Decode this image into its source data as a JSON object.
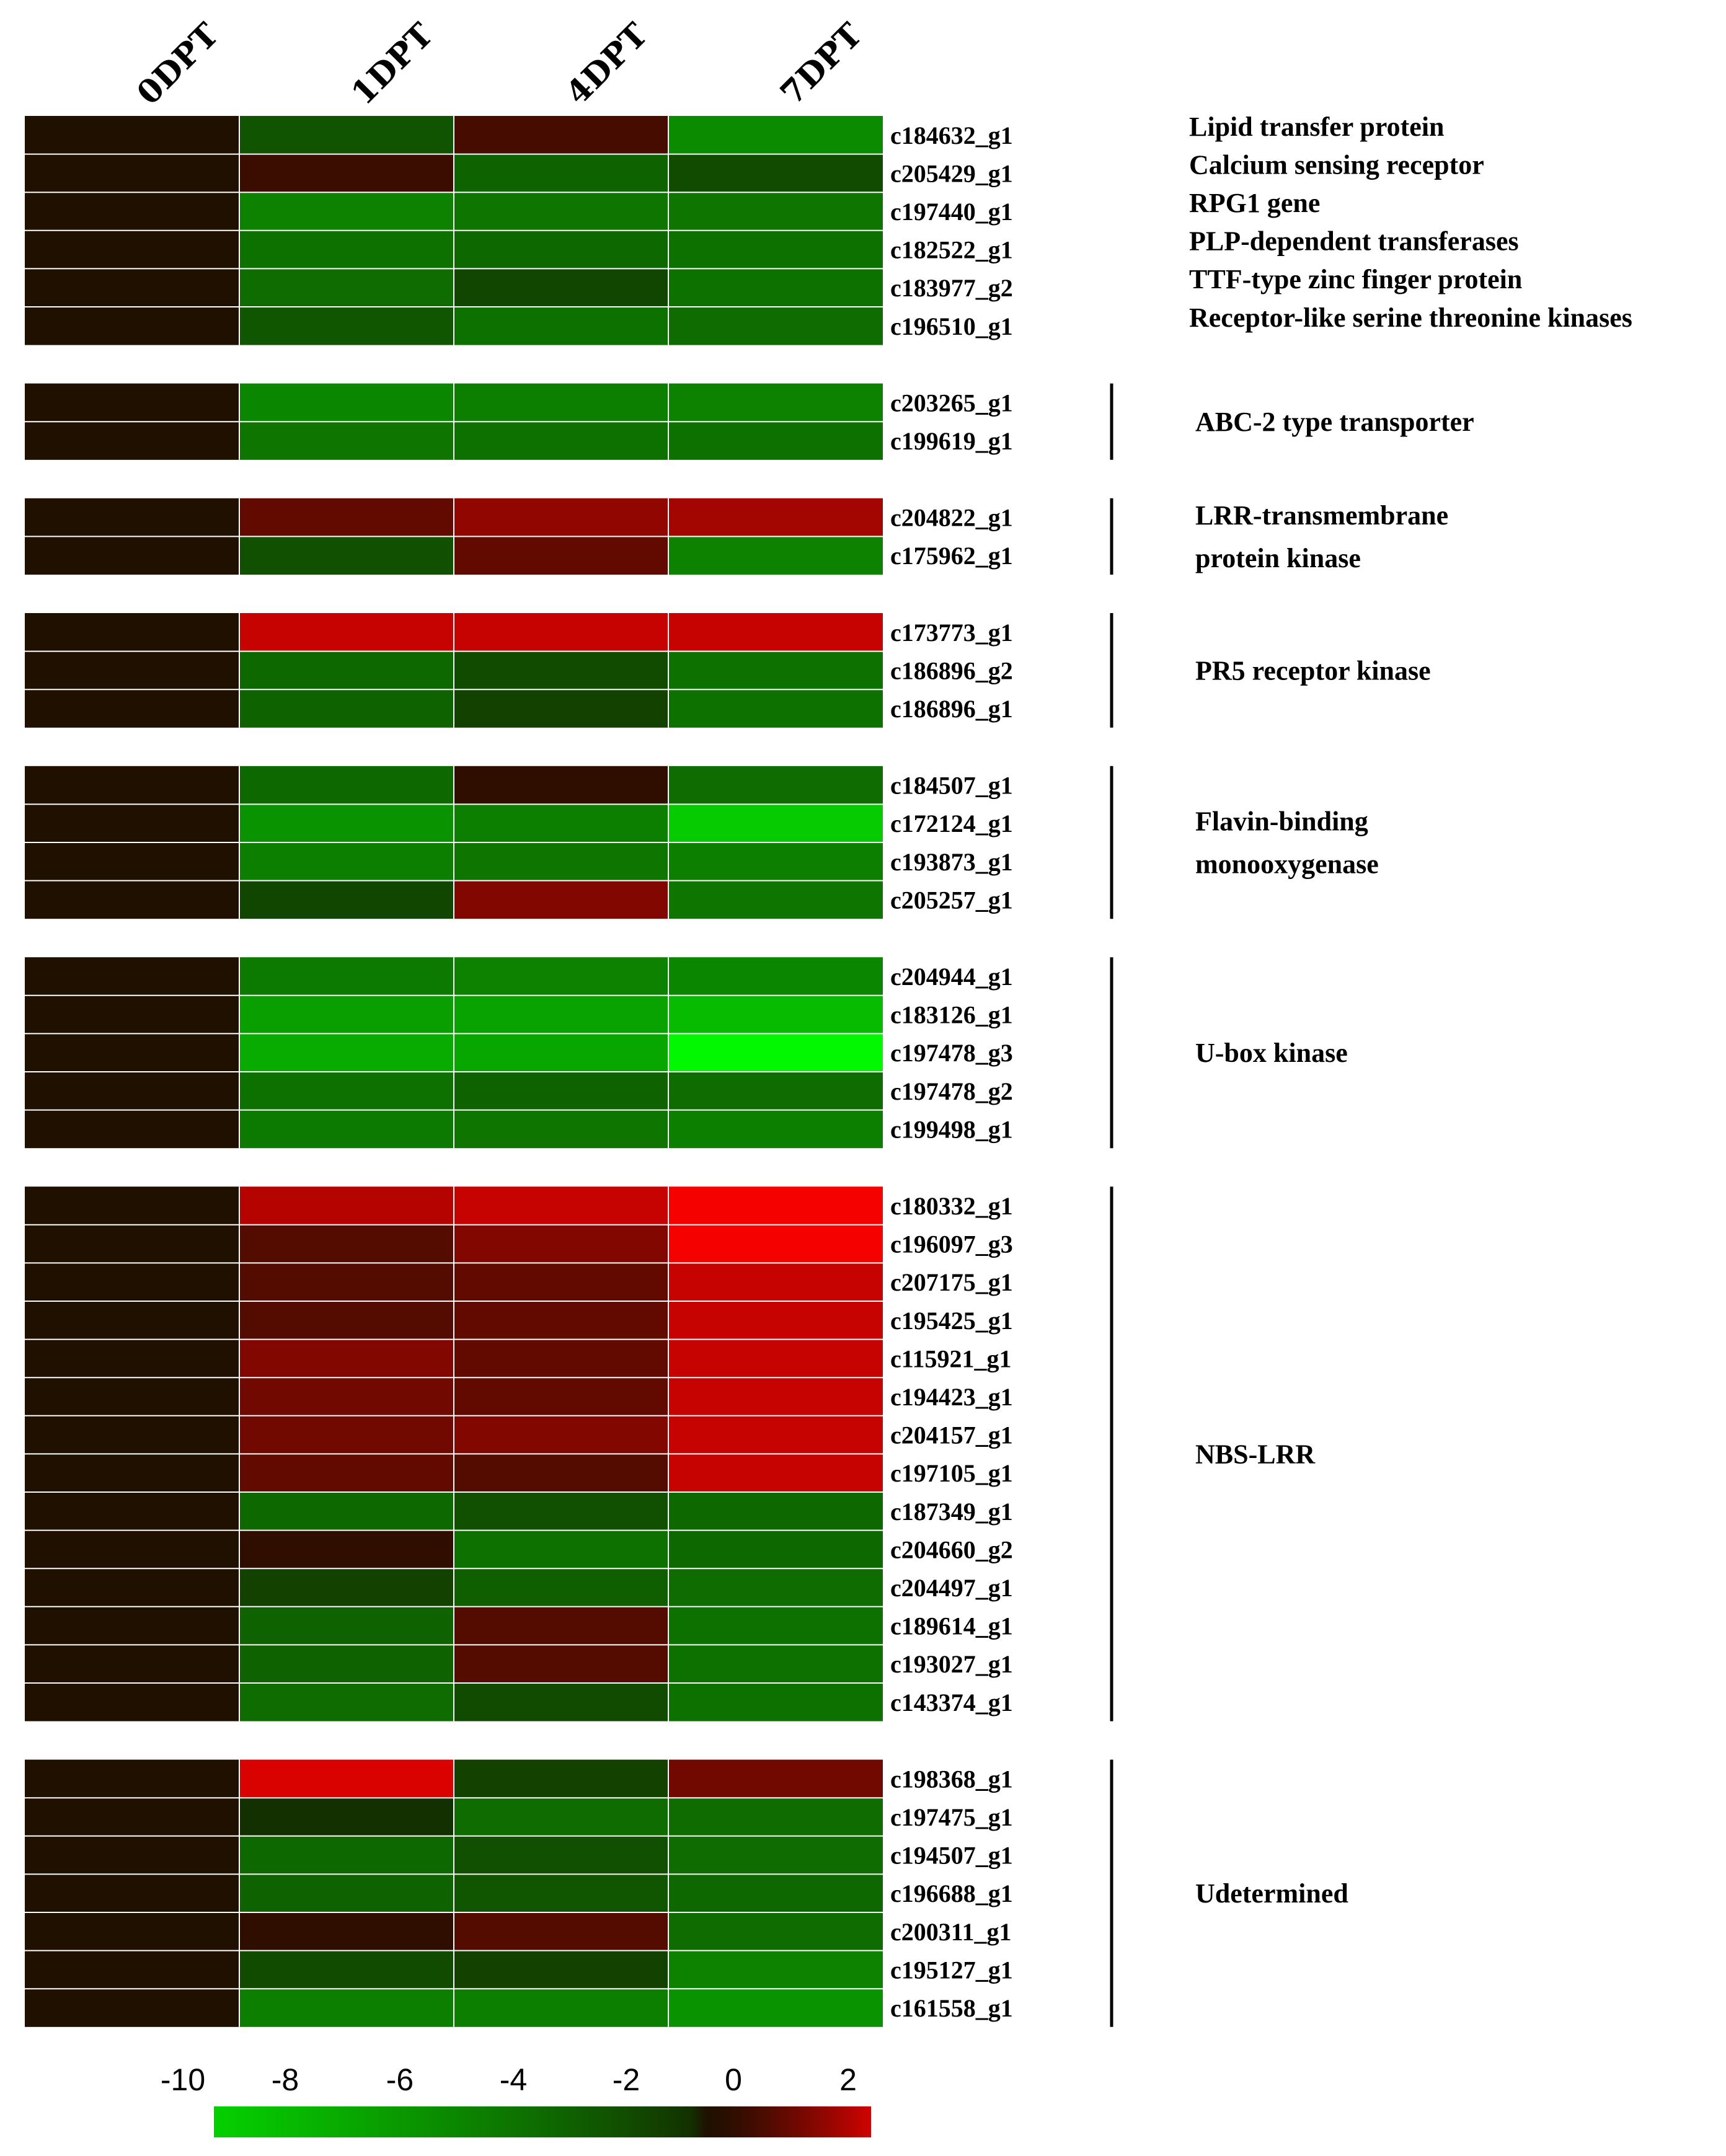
{
  "chart_data": {
    "type": "heatmap",
    "title": "",
    "columns": [
      "0DPT",
      "1DPT",
      "4DPT",
      "7DPT"
    ],
    "colorbar": {
      "ticks": [
        "-10",
        "-8",
        "-6",
        "-4",
        "-2",
        "0",
        "2"
      ],
      "range": [
        -10,
        3
      ],
      "colors": [
        "#00ff00",
        "#000000",
        "#ff0000"
      ]
    },
    "groups": [
      {
        "name": "",
        "bracket": false,
        "rows": [
          {
            "id": "c184632_g1",
            "annotation": "Lipid transfer protein",
            "values": [
              0,
              -1.5,
              0.8,
              -4
            ]
          },
          {
            "id": "c205429_g1",
            "annotation": "Calcium sensing receptor",
            "values": [
              0,
              0.6,
              -2.2,
              -1.2
            ]
          },
          {
            "id": "c197440_g1",
            "annotation": "RPG1 gene",
            "values": [
              0,
              -3.6,
              -3,
              -3
            ]
          },
          {
            "id": "c182522_g1",
            "annotation": "PLP-dependent transferases",
            "values": [
              0,
              -2.8,
              -2.4,
              -2.8
            ]
          },
          {
            "id": "c183977_g2",
            "annotation": "TTF-type zinc finger protein",
            "values": [
              0,
              -2.6,
              -1,
              -2.8
            ]
          },
          {
            "id": "c196510_g1",
            "annotation": "Receptor-like serine threonine kinases",
            "values": [
              0,
              -1.6,
              -2.8,
              -2.6
            ]
          }
        ]
      },
      {
        "name": "ABC-2 type transporter",
        "bracket": true,
        "rows": [
          {
            "id": "c203265_g1",
            "values": [
              0,
              -3.8,
              -3.4,
              -3.6
            ]
          },
          {
            "id": "c199619_g1",
            "values": [
              0,
              -3,
              -2.8,
              -2.8
            ]
          }
        ]
      },
      {
        "name": "LRR-transmembrane protein kinase",
        "name_lines": [
          "LRR-transmembrane",
          "protein kinase"
        ],
        "bracket": true,
        "rows": [
          {
            "id": "c204822_g1",
            "values": [
              0,
              1.2,
              1.8,
              2
            ]
          },
          {
            "id": "c175962_g1",
            "values": [
              0,
              -1.4,
              1.2,
              -3.6
            ]
          }
        ]
      },
      {
        "name": "PR5 receptor kinase",
        "bracket": true,
        "rows": [
          {
            "id": "c173773_g1",
            "values": [
              0,
              2.4,
              2.4,
              2.4
            ]
          },
          {
            "id": "c186896_g2",
            "values": [
              0,
              -2.4,
              -1.2,
              -2.8
            ]
          },
          {
            "id": "c186896_g1",
            "values": [
              0,
              -2.2,
              -0.8,
              -2.8
            ]
          }
        ]
      },
      {
        "name": "Flavin-binding monooxygenase",
        "name_lines": [
          "Flavin-binding",
          "monooxygenase"
        ],
        "bracket": true,
        "rows": [
          {
            "id": "c184507_g1",
            "values": [
              0,
              -2.4,
              0.4,
              -2.6
            ]
          },
          {
            "id": "c172124_g1",
            "values": [
              0,
              -4.4,
              -3.4,
              -7.2
            ]
          },
          {
            "id": "c193873_g1",
            "values": [
              0,
              -3.4,
              -3,
              -3.4
            ]
          },
          {
            "id": "c205257_g1",
            "values": [
              0,
              -1,
              1.6,
              -3
            ]
          }
        ]
      },
      {
        "name": "U-box kinase",
        "bracket": true,
        "rows": [
          {
            "id": "c204944_g1",
            "values": [
              0,
              -3.2,
              -3.6,
              -3.8
            ]
          },
          {
            "id": "c183126_g1",
            "values": [
              0,
              -5,
              -5.2,
              -6.4
            ]
          },
          {
            "id": "c197478_g3",
            "values": [
              0,
              -5.6,
              -5.4,
              -9.6
            ]
          },
          {
            "id": "c197478_g2",
            "values": [
              0,
              -2.8,
              -2.2,
              -2.6
            ]
          },
          {
            "id": "c199498_g1",
            "values": [
              0,
              -3.2,
              -3,
              -3.4
            ]
          }
        ]
      },
      {
        "name": "NBS-LRR",
        "bracket": true,
        "rows": [
          {
            "id": "c180332_g1",
            "values": [
              0,
              2.2,
              2.4,
              2.9
            ]
          },
          {
            "id": "c196097_g3",
            "values": [
              0,
              1,
              1.6,
              2.9
            ]
          },
          {
            "id": "c207175_g1",
            "values": [
              0,
              1,
              1.2,
              2.4
            ]
          },
          {
            "id": "c195425_g1",
            "values": [
              0,
              1,
              1.2,
              2.4
            ]
          },
          {
            "id": "c115921_g1",
            "values": [
              0,
              1.6,
              1.2,
              2.4
            ]
          },
          {
            "id": "c194423_g1",
            "values": [
              0,
              1.4,
              1.2,
              2.4
            ]
          },
          {
            "id": "c204157_g1",
            "values": [
              0,
              1.4,
              1.6,
              2.4
            ]
          },
          {
            "id": "c197105_g1",
            "values": [
              0,
              1.2,
              1,
              2.4
            ]
          },
          {
            "id": "c187349_g1",
            "values": [
              0,
              -2.4,
              -1.4,
              -2.4
            ]
          },
          {
            "id": "c204660_g2",
            "values": [
              0,
              0.4,
              -2.8,
              -2.4
            ]
          },
          {
            "id": "c204497_g1",
            "values": [
              0,
              -0.8,
              -2,
              -2.6
            ]
          },
          {
            "id": "c189614_g1",
            "values": [
              0,
              -2.2,
              1,
              -2.8
            ]
          },
          {
            "id": "c193027_g1",
            "values": [
              0,
              -2.2,
              1,
              -2.8
            ]
          },
          {
            "id": "c143374_g1",
            "values": [
              0,
              -2.6,
              -1.2,
              -2.8
            ]
          }
        ]
      },
      {
        "name": "Udetermined",
        "bracket": true,
        "rows": [
          {
            "id": "c198368_g1",
            "values": [
              0,
              2.6,
              -0.8,
              1.4
            ]
          },
          {
            "id": "c197475_g1",
            "values": [
              0,
              -0.2,
              -2.6,
              -2.6
            ]
          },
          {
            "id": "c194507_g1",
            "values": [
              0,
              -2.4,
              -1.4,
              -2.6
            ]
          },
          {
            "id": "c196688_g1",
            "values": [
              0,
              -2.2,
              -1.6,
              -2.4
            ]
          },
          {
            "id": "c200311_g1",
            "values": [
              0,
              0.4,
              1,
              -2.6
            ]
          },
          {
            "id": "c195127_g1",
            "values": [
              0,
              -1.2,
              -0.8,
              -3.6
            ]
          },
          {
            "id": "c161558_g1",
            "values": [
              0,
              -3.4,
              -3.4,
              -4.4
            ]
          }
        ]
      }
    ]
  }
}
